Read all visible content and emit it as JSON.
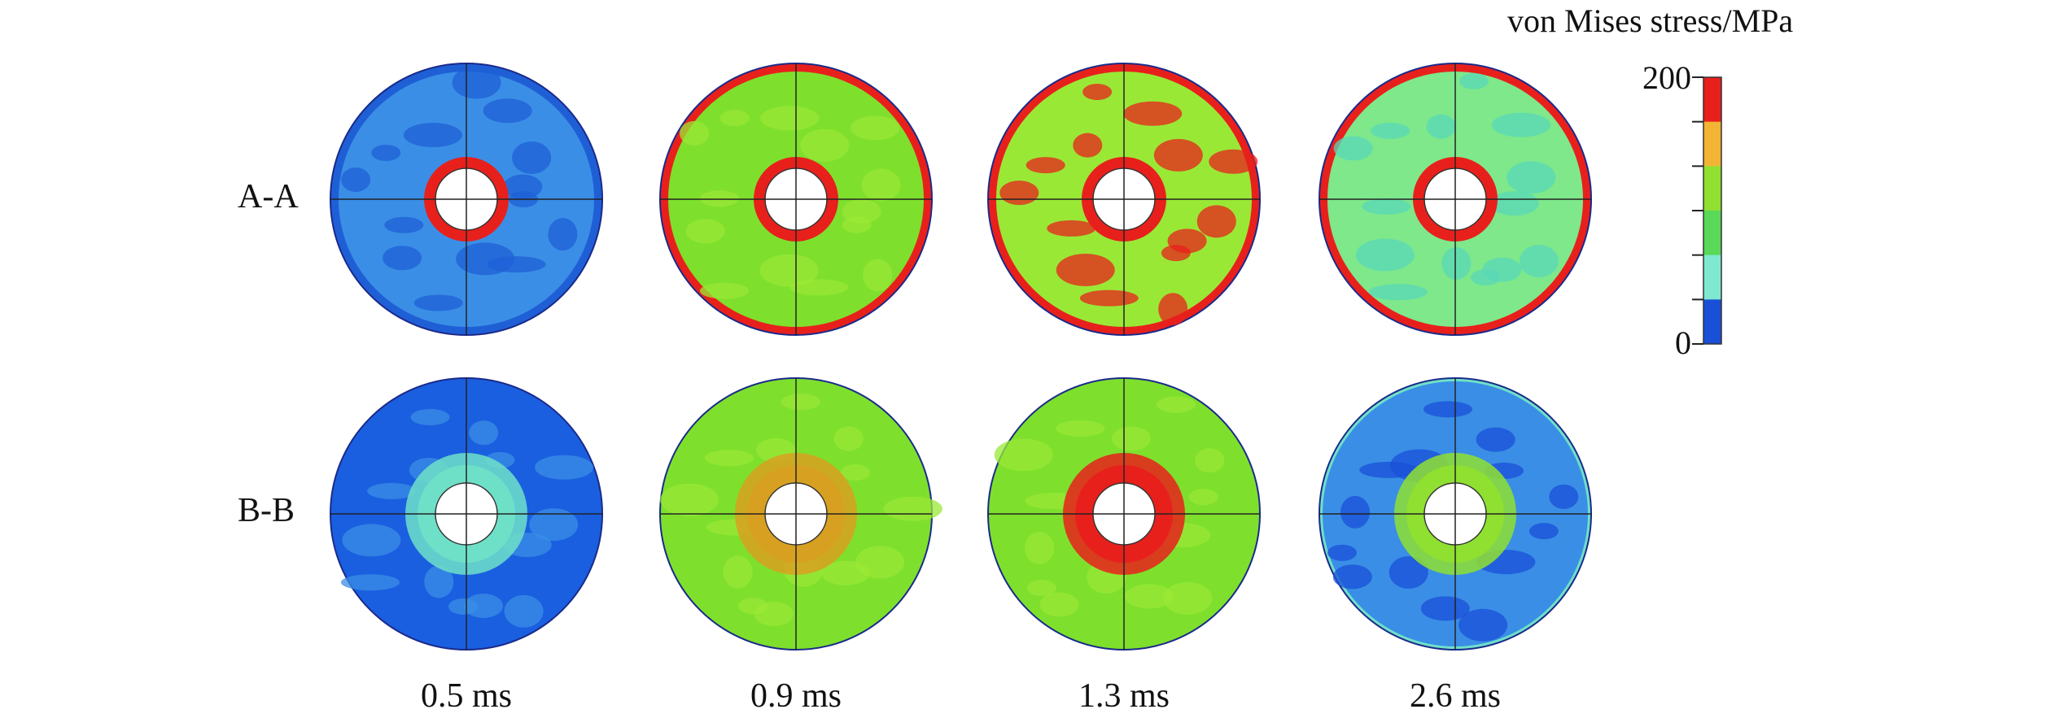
{
  "legend": {
    "title": "von Mises stress/MPa",
    "max_label": "200",
    "min_label": "0",
    "colors": [
      "#e8201c",
      "#f2b432",
      "#8fe030",
      "#5ad858",
      "#7fe8d0",
      "#1a4fd8"
    ]
  },
  "rows": [
    {
      "label": "A-A"
    },
    {
      "label": "B-B"
    }
  ],
  "times": [
    "0.5 ms",
    "0.9 ms",
    "1.3 ms",
    "2.6 ms"
  ],
  "panels": [
    {
      "row": "A-A",
      "time": "0.5 ms",
      "fill": "#3a8ee6",
      "patch": "#1f5fd6",
      "inner": "#e8201c",
      "outer": "#1f5fd6"
    },
    {
      "row": "A-A",
      "time": "0.9 ms",
      "fill": "#7ee02c",
      "patch": "#9ae836",
      "inner": "#e8201c",
      "outer": "#e8201c"
    },
    {
      "row": "A-A",
      "time": "1.3 ms",
      "fill": "#9ae836",
      "patch": "#e8201c",
      "inner": "#e8201c",
      "outer": "#e8201c"
    },
    {
      "row": "A-A",
      "time": "2.6 ms",
      "fill": "#7ee88a",
      "patch": "#5ad8b8",
      "inner": "#e8201c",
      "outer": "#e8201c"
    },
    {
      "row": "B-B",
      "time": "0.5 ms",
      "fill": "#1a5fe0",
      "patch": "#3a8ee6",
      "inner": "#6fe0c8",
      "outer": "#1a5fe0"
    },
    {
      "row": "B-B",
      "time": "0.9 ms",
      "fill": "#7ee02c",
      "patch": "#9ae836",
      "inner": "#d8a020",
      "outer": "#7ee02c"
    },
    {
      "row": "B-B",
      "time": "1.3 ms",
      "fill": "#7ee02c",
      "patch": "#9ae836",
      "inner": "#e8201c",
      "outer": "#7ee02c"
    },
    {
      "row": "B-B",
      "time": "2.6 ms",
      "fill": "#3a8ee6",
      "patch": "#1a4fd8",
      "inner": "#8fe030",
      "outer": "#6fe0c8"
    }
  ]
}
